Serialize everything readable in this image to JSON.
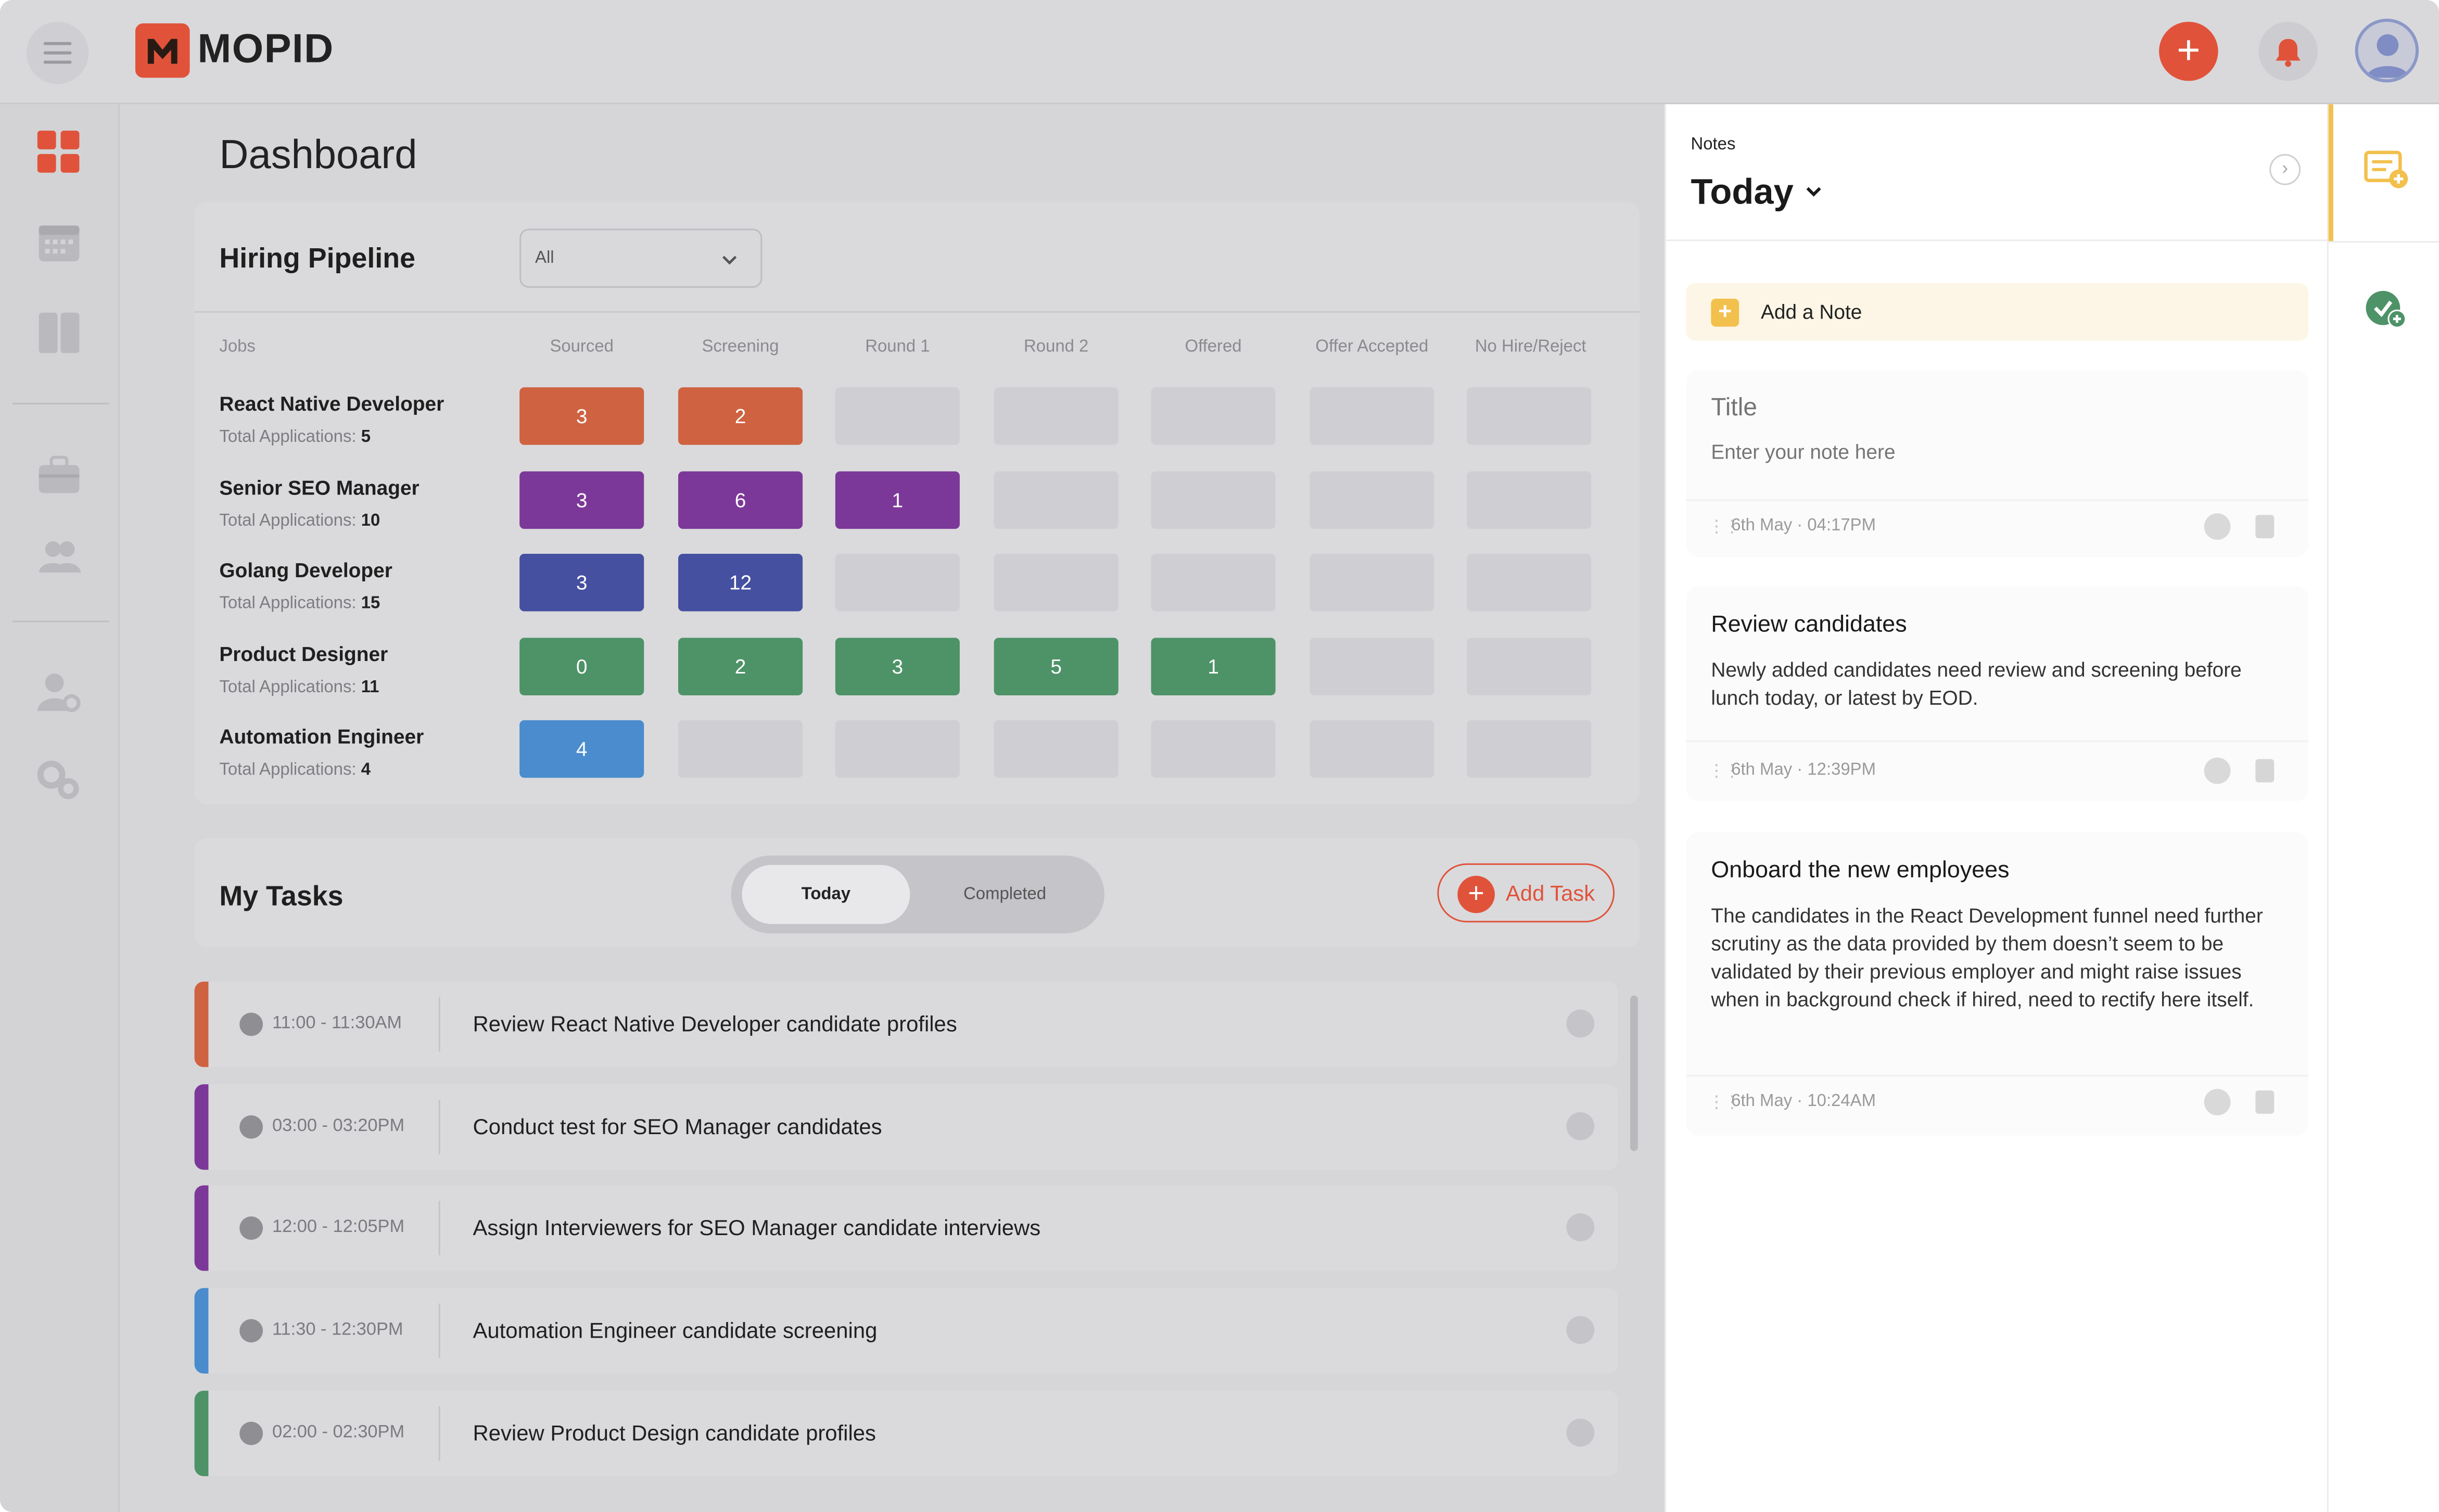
{
  "app": {
    "brand": "MOPID"
  },
  "colors": {
    "accent": "#e0533a",
    "purple": "#7c3898",
    "indigo": "#4650a0",
    "green": "#4d9367",
    "blue": "#4a8ccd",
    "note_yellow": "#f2c04c"
  },
  "topbar": {
    "add_icon": "plus-icon",
    "bell_icon": "bell-icon",
    "avatar_icon": "user-avatar-icon"
  },
  "sidebar": {
    "items": [
      "dashboard-icon",
      "calendar-icon",
      "board-icon",
      "jobs-icon",
      "candidates-icon",
      "user-settings-icon",
      "settings-icon"
    ]
  },
  "page": {
    "title": "Dashboard"
  },
  "pipeline": {
    "title": "Hiring Pipeline",
    "filter_value": "All",
    "columns": [
      "Jobs",
      "Sourced",
      "Screening",
      "Round 1",
      "Round 2",
      "Offered",
      "Offer Accepted",
      "No Hire/Reject"
    ],
    "total_label": "Total Applications:",
    "rows": [
      {
        "job": "React Native Developer",
        "total": "5",
        "color": "#cf6241",
        "counts": [
          "3",
          "2",
          "",
          "",
          "",
          "",
          ""
        ]
      },
      {
        "job": "Senior SEO Manager",
        "total": "10",
        "color": "#7c3898",
        "counts": [
          "3",
          "6",
          "1",
          "",
          "",
          "",
          ""
        ]
      },
      {
        "job": "Golang Developer",
        "total": "15",
        "color": "#4650a0",
        "counts": [
          "3",
          "12",
          "",
          "",
          "",
          "",
          ""
        ]
      },
      {
        "job": "Product Designer",
        "total": "11",
        "color": "#4d9367",
        "counts": [
          "0",
          "2",
          "3",
          "5",
          "1",
          "",
          ""
        ]
      },
      {
        "job": "Automation Engineer",
        "total": "4",
        "color": "#4a8ccd",
        "counts": [
          "4",
          "",
          "",
          "",
          "",
          "",
          ""
        ]
      }
    ]
  },
  "tasks": {
    "title": "My Tasks",
    "tabs": [
      "Today",
      "Completed"
    ],
    "add_label": "Add Task",
    "items": [
      {
        "time": "11:00 - 11:30AM",
        "text": "Review React Native Developer candidate profiles",
        "color": "#cf6241"
      },
      {
        "time": "03:00 - 03:20PM",
        "text": "Conduct test for SEO Manager candidates",
        "color": "#7c3898"
      },
      {
        "time": "12:00 - 12:05PM",
        "text": "Assign Interviewers for SEO Manager candidate interviews",
        "color": "#7c3898"
      },
      {
        "time": "11:30 - 12:30PM",
        "text": "Automation Engineer candidate screening",
        "color": "#4a8ccd"
      },
      {
        "time": "02:00 - 02:30PM",
        "text": "Review Product Design candidate profiles",
        "color": "#4d9367"
      }
    ]
  },
  "notes": {
    "label": "Notes",
    "period": "Today",
    "add_label": "Add a Note",
    "draft": {
      "title_placeholder": "Title",
      "body_placeholder": "Enter your note here",
      "meta": "6th May · 04:17PM"
    },
    "items": [
      {
        "title": "Review candidates",
        "body": "Newly added candidates need review and screening before lunch today, or latest by EOD.",
        "meta": "6th May · 12:39PM"
      },
      {
        "title": "Onboard the new employees",
        "body": "The candidates in the React Development funnel need further scrutiny as the data provided by them doesn’t seem to be validated by their previous employer and might raise issues when in background check if hired, need to rectify here itself.",
        "meta": "6th May · 10:24AM"
      }
    ]
  },
  "rail": {
    "items": [
      "add-note-icon",
      "add-task-icon"
    ]
  }
}
